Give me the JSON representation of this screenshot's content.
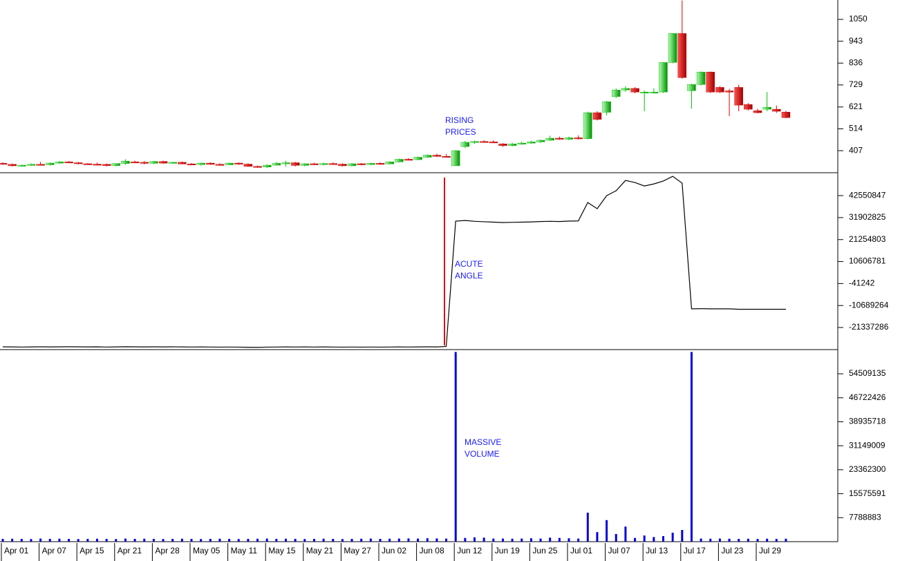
{
  "chart_data": [
    {
      "type": "candlestick",
      "open": [
        345,
        340,
        333,
        336,
        340,
        338,
        346,
        352,
        348,
        343,
        341,
        340,
        334,
        344,
        352,
        350,
        345,
        354,
        346,
        350,
        342,
        339,
        346,
        340,
        338,
        346,
        341,
        330,
        327,
        336,
        345,
        348,
        335,
        343,
        340,
        344,
        341,
        333,
        343,
        339,
        345,
        342,
        352,
        365,
        363,
        375,
        385,
        379,
        333,
        427,
        448,
        452,
        450,
        440,
        432,
        440,
        444,
        450,
        458,
        468,
        463,
        470,
        466,
        593,
        595,
        672,
        704,
        712,
        694,
        690,
        694,
        839,
        981,
        701,
        731,
        792,
        717,
        700,
        717,
        633,
        603,
        610,
        610,
        596
      ],
      "high": [
        350,
        344,
        338,
        345,
        352,
        350,
        356,
        356,
        352,
        346,
        348,
        344,
        345,
        365,
        358,
        356,
        357,
        358,
        352,
        354,
        346,
        348,
        350,
        346,
        348,
        350,
        345,
        334,
        340,
        352,
        358,
        352,
        346,
        348,
        348,
        350,
        345,
        346,
        347,
        348,
        350,
        355,
        368,
        370,
        378,
        388,
        392,
        390,
        410,
        455,
        456,
        458,
        458,
        444,
        446,
        452,
        456,
        462,
        480,
        476,
        476,
        482,
        598,
        600,
        650,
        712,
        722,
        718,
        702,
        712,
        840,
        983,
        1143,
        735,
        795,
        795,
        722,
        710,
        730,
        640,
        612,
        694,
        628,
        602
      ],
      "low": [
        338,
        330,
        328,
        332,
        335,
        334,
        342,
        346,
        340,
        338,
        336,
        330,
        330,
        338,
        346,
        340,
        342,
        343,
        342,
        340,
        336,
        334,
        338,
        334,
        336,
        338,
        328,
        324,
        322,
        334,
        328,
        330,
        330,
        336,
        334,
        338,
        330,
        331,
        335,
        336,
        338,
        340,
        349,
        360,
        360,
        372,
        376,
        374,
        333,
        420,
        440,
        446,
        444,
        425,
        428,
        436,
        440,
        444,
        455,
        460,
        458,
        462,
        462,
        555,
        580,
        665,
        696,
        688,
        600,
        686,
        690,
        835,
        760,
        613,
        726,
        690,
        690,
        576,
        600,
        604,
        590,
        600,
        592,
        566
      ],
      "close": [
        340,
        333,
        336,
        340,
        338,
        346,
        352,
        348,
        343,
        341,
        340,
        334,
        344,
        356,
        350,
        345,
        354,
        346,
        350,
        342,
        339,
        346,
        340,
        338,
        346,
        341,
        330,
        327,
        336,
        345,
        348,
        335,
        343,
        340,
        344,
        341,
        333,
        343,
        339,
        345,
        342,
        352,
        365,
        363,
        375,
        385,
        379,
        376,
        407,
        448,
        452,
        450,
        447,
        432,
        440,
        444,
        450,
        458,
        468,
        463,
        470,
        466,
        593,
        560,
        647,
        704,
        712,
        694,
        694,
        694,
        839,
        981,
        765,
        731,
        792,
        694,
        694,
        694,
        630,
        610,
        593,
        620,
        600,
        569
      ],
      "up_color": "#00c000",
      "down_color": "#d00000",
      "ylim": [
        299,
        1145
      ],
      "yticks": [
        407,
        514,
        621,
        729,
        836,
        943,
        1050
      ],
      "annotation": [
        "RISING",
        "PRICES"
      ]
    },
    {
      "type": "line",
      "color": "#000000",
      "values": [
        -30700000,
        -30750000,
        -30800000,
        -30750000,
        -30700000,
        -30750000,
        -30700000,
        -30650000,
        -30700000,
        -30750000,
        -30700000,
        -30800000,
        -30750000,
        -30650000,
        -30700000,
        -30750000,
        -30700000,
        -30750000,
        -30700000,
        -30750000,
        -30800000,
        -30750000,
        -30800000,
        -30850000,
        -30800000,
        -30850000,
        -30900000,
        -30950000,
        -30850000,
        -30800000,
        -30750000,
        -30800000,
        -30750000,
        -30800000,
        -30750000,
        -30800000,
        -30850000,
        -30800000,
        -30850000,
        -30800000,
        -30850000,
        -30800000,
        -30750000,
        -30800000,
        -30750000,
        -30700000,
        -30750000,
        -30500000,
        30200000,
        30500000,
        30100000,
        29900000,
        29700000,
        29500000,
        29600000,
        29700000,
        29800000,
        30000000,
        30100000,
        30000000,
        30200000,
        30300000,
        39200000,
        36200000,
        42500000,
        44900000,
        49900000,
        48900000,
        47200000,
        48200000,
        49600000,
        51900000,
        48600000,
        -12300000,
        -12200000,
        -12300000,
        -12300000,
        -12300000,
        -12500000,
        -12500000,
        -12500000,
        -12500000,
        -12500000,
        -12500000
      ],
      "ylim": [
        -31700000,
        53300000
      ],
      "yticks": [
        -21337286,
        -10689264,
        -41242,
        10606781,
        21254803,
        31902825,
        42550847
      ],
      "annotation": [
        "ACUTE",
        "ANGLE"
      ]
    },
    {
      "type": "bar",
      "color": "#0000e0",
      "categories": [
        "Apr 01",
        null,
        null,
        null,
        "Apr 07",
        null,
        null,
        null,
        "Apr 15",
        null,
        null,
        null,
        "Apr 21",
        null,
        null,
        null,
        "Apr 28",
        null,
        null,
        null,
        "May 05",
        null,
        null,
        null,
        "May 11",
        null,
        null,
        null,
        "May 15",
        null,
        null,
        null,
        "May 21",
        null,
        null,
        null,
        "May 27",
        null,
        null,
        null,
        "Jun 02",
        null,
        null,
        null,
        "Jun 08",
        null,
        null,
        null,
        "Jun 12",
        null,
        null,
        null,
        "Jun 19",
        null,
        null,
        null,
        "Jun 25",
        null,
        null,
        null,
        "Jul 01",
        null,
        null,
        null,
        "Jul 07",
        null,
        null,
        null,
        "Jul 13",
        null,
        null,
        null,
        "Jul 17",
        null,
        null,
        null,
        "Jul 23",
        null,
        null,
        null,
        "Jul 29",
        null,
        null,
        null
      ],
      "values": [
        900000,
        950000,
        900000,
        850000,
        1000000,
        900000,
        950000,
        900000,
        850000,
        900000,
        950000,
        900000,
        850000,
        1000000,
        900000,
        950000,
        900000,
        850000,
        900000,
        950000,
        900000,
        850000,
        900000,
        950000,
        900000,
        850000,
        900000,
        950000,
        1000000,
        900000,
        950000,
        900000,
        850000,
        900000,
        950000,
        900000,
        850000,
        900000,
        950000,
        1000000,
        900000,
        950000,
        1000000,
        1050000,
        1000000,
        1100000,
        1050000,
        1000000,
        61600000,
        1200000,
        1400000,
        1300000,
        1000000,
        1000000,
        950000,
        1000000,
        1100000,
        1000000,
        1300000,
        1200000,
        1100000,
        1000000,
        9400000,
        3100000,
        7000000,
        2500000,
        4900000,
        1200000,
        2000000,
        1500000,
        1800000,
        2900000,
        3800000,
        61600000,
        1000000,
        950000,
        1000000,
        950000,
        900000,
        950000,
        900000,
        950000,
        900000,
        950000
      ],
      "ylim": [
        0,
        62150000
      ],
      "yticks": [
        7788883,
        15575591,
        23362300,
        31149009,
        38935718,
        46722426,
        54509135
      ],
      "annotation": [
        "MASSIVE",
        "VOLUME"
      ]
    }
  ]
}
